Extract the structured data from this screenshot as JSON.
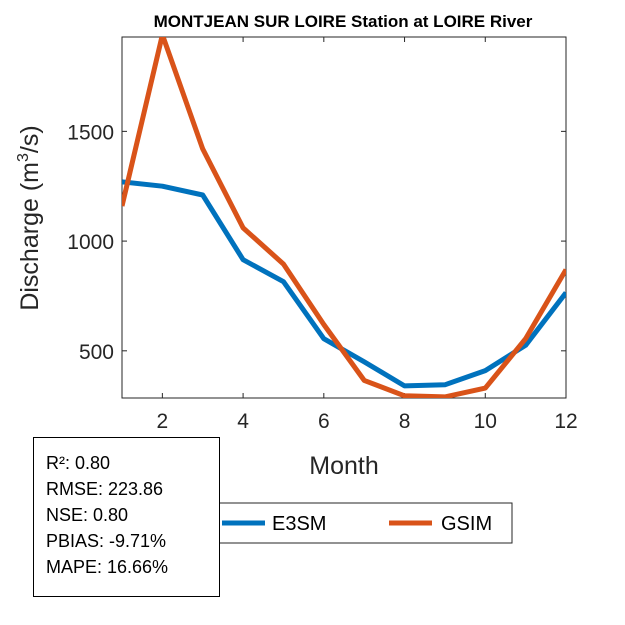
{
  "chart_data": {
    "type": "line",
    "title": "MONTJEAN SUR LOIRE  Station at  LOIRE  River",
    "xlabel": "Month",
    "ylabel": "Discharge (m",
    "ylabel_sup": "3",
    "ylabel_end": "/s)",
    "xlim": [
      1,
      12
    ],
    "ylim": [
      285,
      1930
    ],
    "xticks": [
      2,
      4,
      6,
      8,
      10,
      12
    ],
    "yticks": [
      500,
      1000,
      1500
    ],
    "grid": false,
    "legend_position": "bottom",
    "x": [
      1,
      2,
      3,
      4,
      5,
      6,
      7,
      8,
      9,
      10,
      11,
      12
    ],
    "series": [
      {
        "name": "E3SM",
        "color": "#0072BD",
        "values": [
          1270,
          1250,
          1210,
          915,
          815,
          555,
          450,
          340,
          345,
          410,
          525,
          765
        ]
      },
      {
        "name": "GSIM",
        "color": "#D95319",
        "values": [
          1160,
          1940,
          1420,
          1060,
          895,
          620,
          365,
          295,
          290,
          330,
          555,
          870
        ]
      }
    ]
  },
  "stats": {
    "r2": "R²: 0.80",
    "rmse": "RMSE: 223.86",
    "nse": "NSE: 0.80",
    "pbias": "PBIAS: -9.71%",
    "mape": "MAPE: 16.66%"
  }
}
